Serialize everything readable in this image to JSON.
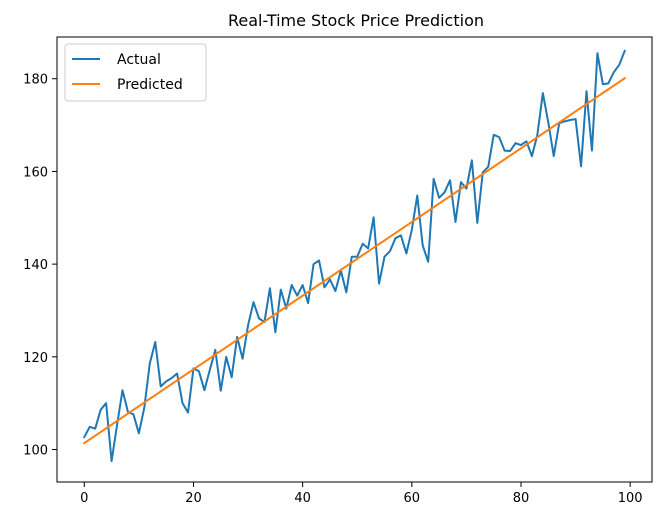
{
  "chart_data": {
    "type": "line",
    "title": "Real-Time Stock Price Prediction",
    "xlabel": "",
    "ylabel": "",
    "xlim": [
      -5,
      104
    ],
    "ylim": [
      93,
      189
    ],
    "xticks": [
      0,
      20,
      40,
      60,
      80,
      100
    ],
    "yticks": [
      100,
      120,
      140,
      160,
      180
    ],
    "grid": false,
    "legend_position": "top-left",
    "series": [
      {
        "name": "Actual",
        "color": "#1f77b4",
        "x": [
          0,
          1,
          2,
          3,
          4,
          5,
          6,
          7,
          8,
          9,
          10,
          11,
          12,
          13,
          14,
          15,
          16,
          17,
          18,
          19,
          20,
          21,
          22,
          23,
          24,
          25,
          26,
          27,
          28,
          29,
          30,
          31,
          32,
          33,
          34,
          35,
          36,
          37,
          38,
          39,
          40,
          41,
          42,
          43,
          44,
          45,
          46,
          47,
          48,
          49,
          50,
          51,
          52,
          53,
          54,
          55,
          56,
          57,
          58,
          59,
          60,
          61,
          62,
          63,
          64,
          65,
          66,
          67,
          68,
          69,
          70,
          71,
          72,
          73,
          74,
          75,
          76,
          77,
          78,
          79,
          80,
          81,
          82,
          83,
          84,
          85,
          86,
          87,
          88,
          89,
          90,
          91,
          92,
          93,
          94,
          95,
          96,
          97,
          98,
          99
        ],
        "values": [
          102.7,
          104.9,
          104.5,
          108.6,
          110.0,
          97.5,
          105.3,
          112.8,
          108.1,
          107.6,
          103.5,
          109.1,
          118.6,
          123.2,
          113.6,
          114.7,
          115.4,
          116.4,
          110.0,
          108.0,
          117.5,
          116.9,
          112.8,
          117.2,
          121.5,
          112.7,
          120.0,
          115.6,
          124.3,
          119.6,
          126.8,
          131.8,
          128.3,
          127.5,
          134.8,
          125.3,
          134.5,
          130.4,
          135.5,
          133.2,
          135.5,
          131.6,
          140.0,
          140.8,
          135.0,
          136.7,
          134.2,
          138.6,
          133.9,
          141.6,
          141.6,
          144.4,
          143.4,
          150.1,
          135.8,
          141.6,
          142.8,
          145.6,
          146.2,
          142.3,
          147.4,
          154.8,
          144.0,
          140.5,
          158.4,
          154.3,
          155.5,
          158.1,
          149.1,
          157.7,
          156.3,
          162.4,
          148.9,
          159.8,
          161.0,
          167.9,
          167.4,
          164.5,
          164.4,
          166.1,
          165.7,
          166.5,
          163.3,
          167.9,
          176.9,
          170.6,
          163.3,
          170.4,
          170.8,
          171.1,
          171.3,
          161.1,
          177.3,
          164.5,
          185.5,
          178.8,
          179.0,
          181.4,
          183.0,
          186.0
        ]
      },
      {
        "name": "Predicted",
        "color": "#ff7f0e",
        "x": [
          0,
          99
        ],
        "values": [
          101.4,
          180.1
        ]
      }
    ]
  }
}
